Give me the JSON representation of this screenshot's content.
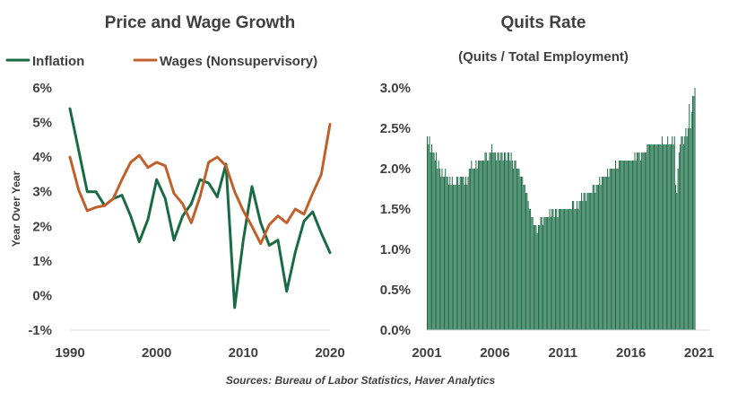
{
  "source": "Sources: Bureau of Labor Statistics, Haver Analytics",
  "chart_data": [
    {
      "type": "line",
      "title": "Price and Wage Growth",
      "ylabel": "Year Over Year",
      "xlabel": "",
      "xlim": [
        1990,
        2020
      ],
      "ylim": [
        -1,
        6
      ],
      "xticks": [
        1990,
        2000,
        2010,
        2020
      ],
      "yticks": [
        -1,
        0,
        1,
        2,
        3,
        4,
        5,
        6
      ],
      "yticks_labels": [
        "-1%",
        "0%",
        "1%",
        "2%",
        "3%",
        "4%",
        "5%",
        "6%"
      ],
      "legend_position": "top",
      "grid": false,
      "x": [
        1990,
        1991,
        1992,
        1993,
        1994,
        1995,
        1996,
        1997,
        1998,
        1999,
        2000,
        2001,
        2002,
        2003,
        2004,
        2005,
        2006,
        2007,
        2008,
        2009,
        2010,
        2011,
        2012,
        2013,
        2014,
        2015,
        2016,
        2017,
        2018,
        2019,
        2020
      ],
      "series": [
        {
          "name": "Inflation",
          "color": "#1a6b45",
          "values": [
            5.4,
            4.2,
            3.0,
            3.0,
            2.6,
            2.8,
            2.9,
            2.3,
            1.55,
            2.2,
            3.35,
            2.8,
            1.6,
            2.3,
            2.65,
            3.35,
            3.25,
            2.85,
            3.8,
            -0.35,
            1.6,
            3.15,
            2.1,
            1.45,
            1.6,
            0.12,
            1.25,
            2.15,
            2.42,
            1.8,
            1.24
          ]
        },
        {
          "name": "Wages (Nonsupervisory)",
          "color": "#c0602a",
          "values": [
            4.0,
            3.05,
            2.45,
            2.55,
            2.6,
            2.8,
            3.35,
            3.85,
            4.05,
            3.7,
            3.85,
            3.75,
            2.95,
            2.65,
            2.1,
            2.85,
            3.85,
            4.0,
            3.75,
            3.0,
            2.45,
            2.0,
            1.5,
            2.05,
            2.3,
            2.1,
            2.5,
            2.35,
            2.95,
            3.5,
            4.95
          ]
        }
      ]
    },
    {
      "type": "bar",
      "title": "Quits Rate",
      "subtitle": "(Quits / Total Employment)",
      "xlabel": "",
      "ylabel": "",
      "xlim": [
        2001,
        2021.75
      ],
      "ylim": [
        0,
        3
      ],
      "xticks": [
        2001,
        2006,
        2011,
        2016,
        2021
      ],
      "yticks": [
        0,
        0.5,
        1.0,
        1.5,
        2.0,
        2.5,
        3.0
      ],
      "yticks_labels": [
        "0.0%",
        "0.5%",
        "1.0%",
        "1.5%",
        "2.0%",
        "2.5%",
        "3.0%"
      ],
      "color": "#1a6b45",
      "grid": false,
      "x_start": "2001-01",
      "frequency": "monthly",
      "values": [
        2.4,
        2.3,
        2.4,
        2.2,
        2.3,
        2.2,
        2.2,
        2.1,
        2.2,
        2.0,
        2.1,
        2.0,
        1.9,
        2.0,
        1.9,
        1.9,
        2.0,
        1.9,
        1.9,
        1.8,
        1.9,
        1.8,
        1.9,
        1.8,
        1.8,
        1.8,
        1.9,
        1.9,
        1.8,
        1.9,
        1.9,
        1.9,
        1.9,
        1.8,
        1.9,
        1.8,
        1.9,
        2.0,
        2.0,
        2.1,
        2.0,
        2.0,
        2.0,
        2.1,
        2.0,
        2.1,
        2.1,
        2.1,
        2.1,
        2.1,
        2.1,
        2.2,
        2.2,
        2.1,
        2.1,
        2.2,
        2.2,
        2.3,
        2.2,
        2.2,
        2.2,
        2.1,
        2.2,
        2.2,
        2.1,
        2.2,
        2.2,
        2.1,
        2.2,
        2.2,
        2.1,
        2.2,
        2.2,
        2.1,
        2.2,
        2.1,
        2.0,
        2.1,
        2.1,
        2.0,
        2.0,
        2.0,
        1.9,
        1.9,
        1.9,
        1.8,
        1.8,
        1.7,
        1.7,
        1.6,
        1.5,
        1.5,
        1.4,
        1.4,
        1.3,
        1.3,
        1.3,
        1.2,
        1.3,
        1.3,
        1.4,
        1.4,
        1.3,
        1.4,
        1.4,
        1.4,
        1.4,
        1.4,
        1.5,
        1.4,
        1.5,
        1.5,
        1.4,
        1.5,
        1.5,
        1.4,
        1.5,
        1.5,
        1.5,
        1.5,
        1.5,
        1.5,
        1.5,
        1.5,
        1.5,
        1.5,
        1.5,
        1.5,
        1.6,
        1.6,
        1.5,
        1.5,
        1.6,
        1.5,
        1.6,
        1.6,
        1.7,
        1.6,
        1.7,
        1.7,
        1.6,
        1.7,
        1.7,
        1.7,
        1.7,
        1.7,
        1.8,
        1.8,
        1.7,
        1.8,
        1.8,
        1.8,
        1.9,
        1.8,
        1.9,
        1.9,
        1.9,
        1.9,
        1.9,
        2.0,
        1.9,
        2.0,
        2.0,
        2.0,
        2.0,
        2.0,
        2.1,
        2.0,
        2.0,
        2.1,
        2.1,
        2.1,
        2.1,
        2.1,
        2.1,
        2.1,
        2.1,
        2.1,
        2.1,
        2.1,
        2.1,
        2.1,
        2.1,
        2.2,
        2.1,
        2.2,
        2.2,
        2.2,
        2.1,
        2.2,
        2.2,
        2.2,
        2.2,
        2.2,
        2.3,
        2.3,
        2.3,
        2.3,
        2.3,
        2.3,
        2.3,
        2.3,
        2.3,
        2.3,
        2.3,
        2.3,
        2.3,
        2.4,
        2.3,
        2.3,
        2.3,
        2.3,
        2.4,
        2.3,
        2.3,
        2.3,
        2.4,
        2.3,
        2.4,
        1.8,
        1.7,
        2.0,
        2.2,
        2.3,
        2.4,
        2.4,
        2.3,
        2.4,
        2.5,
        2.4,
        2.5,
        2.8,
        2.5,
        2.7,
        2.9,
        2.9,
        3.0
      ]
    }
  ]
}
